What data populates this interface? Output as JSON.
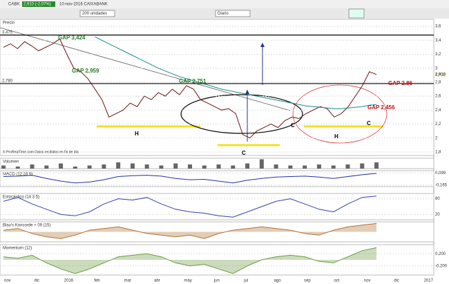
{
  "toolbar": {
    "symbol": "CABK",
    "quote": "2,910 (-2,07%)",
    "info": "10-nov-2016 CAIXABANK",
    "units": "200 unidades",
    "period": "Diario"
  },
  "x_labels": [
    "nov",
    "dic",
    "2016",
    "feb",
    "mar",
    "abr",
    "may",
    "jun",
    "jul",
    "ago",
    "sep",
    "oct",
    "nov",
    "dic",
    "2017"
  ],
  "chart_data": [
    {
      "type": "line",
      "title": "Precio",
      "series": [
        {
          "color": "#6b1010",
          "values": [
            3.3,
            3.35,
            3.28,
            3.38,
            3.32,
            3.25,
            3.3,
            3.35,
            3.42,
            3.2,
            3.0,
            2.95,
            2.85,
            2.7,
            2.55,
            2.3,
            2.35,
            2.4,
            2.5,
            2.45,
            2.6,
            2.55,
            2.65,
            2.6,
            2.7,
            2.62,
            2.75,
            2.7,
            2.55,
            2.5,
            2.45,
            2.4,
            2.42,
            2.35,
            2.05,
            2.0,
            2.1,
            2.15,
            2.2,
            2.15,
            2.25,
            2.3,
            2.28,
            2.35,
            2.4,
            2.45,
            2.42,
            2.3,
            2.35,
            2.45,
            2.6,
            2.75,
            2.95,
            2.91
          ]
        },
        {
          "color": "#1a8a8a",
          "values": [
            null,
            null,
            null,
            null,
            null,
            null,
            null,
            null,
            null,
            null,
            null,
            null,
            null,
            3.45,
            3.4,
            3.35,
            3.3,
            3.25,
            3.2,
            3.15,
            3.1,
            3.05,
            3.0,
            2.96,
            2.92,
            2.88,
            2.85,
            2.82,
            2.79,
            2.76,
            2.73,
            2.7,
            2.68,
            2.66,
            2.64,
            2.62,
            2.6,
            2.58,
            2.56,
            2.54,
            2.52,
            2.5,
            2.48,
            2.46,
            2.45,
            2.44,
            2.43,
            2.42,
            2.42,
            2.43,
            2.44,
            2.45,
            2.47,
            2.48
          ]
        }
      ],
      "ylim": [
        1.75,
        3.7
      ],
      "yticks": [
        {
          "value": 1.8,
          "label": "1,8"
        },
        {
          "value": 2,
          "label": "2"
        },
        {
          "value": 2.2,
          "label": "2,2"
        },
        {
          "value": 2.4,
          "label": "2,4"
        },
        {
          "value": 2.6,
          "label": "2,6"
        },
        {
          "value": 2.8,
          "label": "2,8"
        },
        {
          "value": 3,
          "label": "3"
        },
        {
          "value": 3.2,
          "label": "3,2"
        },
        {
          "value": 3.4,
          "label": "3,4"
        },
        {
          "value": 3.6,
          "label": "3,6"
        }
      ],
      "levels": [
        {
          "value": 3.475,
          "label": "3,475"
        },
        {
          "value": 2.78,
          "label": "2,780"
        }
      ],
      "last": {
        "value": 2.91,
        "label": "2,910"
      },
      "annotations": [
        "GAP 3,424",
        "GAP 2,959",
        "GAP 2,751",
        "GAP 2.86",
        "GAP 2,456",
        "H",
        "H",
        "C",
        "C",
        "C"
      ],
      "source": "© ProRealTime.com  Datos recibidos en fin de día"
    },
    {
      "type": "bar",
      "title": "Volumen",
      "color": "#666",
      "values": [
        3,
        2,
        4,
        3,
        5,
        2,
        3,
        4,
        6,
        5,
        4,
        3,
        5,
        4,
        3,
        4,
        3,
        5,
        9,
        4,
        3,
        3,
        4,
        3,
        4,
        5,
        6
      ],
      "ylim": [
        0,
        10
      ]
    },
    {
      "type": "line",
      "title": "MACD (12 26 9)",
      "color": "#2030a0",
      "values": [
        0.02,
        0.03,
        0.05,
        -0.02,
        -0.08,
        -0.12,
        -0.1,
        -0.05,
        0.02,
        0.04,
        0.05,
        0.03,
        -0.02,
        -0.05,
        -0.04,
        -0.08,
        -0.12,
        -0.06,
        -0.02,
        0.01,
        0.02,
        0.03,
        0.01,
        -0.02,
        0.02,
        0.06,
        0.09
      ],
      "ylim": [
        -0.2,
        0.15
      ],
      "yticks": [
        {
          "value": -0.165,
          "label": "-0,165"
        },
        {
          "value": 0.099,
          "label": "0,099"
        }
      ]
    },
    {
      "type": "line",
      "title": "Estocástico (14 3 5)",
      "color": "#3040b0",
      "values": [
        70,
        85,
        60,
        40,
        20,
        15,
        30,
        60,
        80,
        75,
        85,
        60,
        40,
        30,
        25,
        15,
        10,
        30,
        50,
        70,
        80,
        60,
        40,
        30,
        60,
        85,
        90
      ],
      "ylim": [
        0,
        100
      ],
      "yticks": [
        20,
        80
      ]
    },
    {
      "type": "area",
      "title": "Blau's Koncorde + 09 (15)",
      "color": "#b07030",
      "values": [
        5,
        10,
        -5,
        -15,
        -20,
        -10,
        5,
        10,
        15,
        5,
        -5,
        -10,
        -15,
        -10,
        -20,
        -5,
        5,
        10,
        15,
        10,
        5,
        -5,
        -10,
        5,
        15,
        20,
        25
      ],
      "ylim": [
        -30,
        30
      ]
    },
    {
      "type": "area",
      "title": "Momentum (12)",
      "color": "#6a9a40",
      "values": [
        0.1,
        0.05,
        0.15,
        -0.1,
        -0.3,
        -0.45,
        -0.3,
        -0.1,
        0.1,
        0.15,
        0.2,
        0.1,
        -0.1,
        -0.2,
        -0.15,
        -0.3,
        -0.45,
        -0.2,
        0,
        0.1,
        0.15,
        0.1,
        -0.05,
        -0.1,
        0.1,
        0.3,
        0.4
      ],
      "ylim": [
        -0.5,
        0.5
      ],
      "yticks": [
        {
          "value": -0.2,
          "label": "-0,200"
        },
        {
          "value": 0.2,
          "label": "0,200"
        }
      ]
    }
  ]
}
